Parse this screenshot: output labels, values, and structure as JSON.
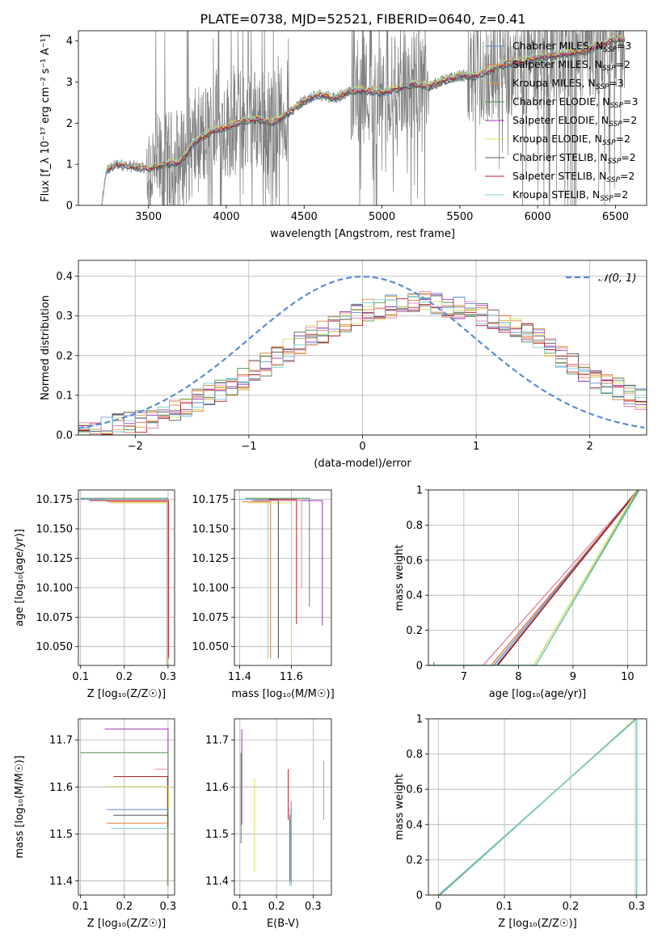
{
  "title": "PLATE=0738, MJD=52521, FIBERID=0640, z=0.41",
  "colors": {
    "Chabrier MILES": "#5b8bd6",
    "Salpeter MILES": "#e07a3a",
    "Kroupa MILES": "#e0a040",
    "Chabrier ELODIE": "#4f8f4f",
    "Salpeter ELODIE": "#9b30b0",
    "Kroupa ELODIE": "#d4e060",
    "Chabrier STELIB": "#555555",
    "Salpeter STELIB": "#b22222",
    "Kroupa STELIB": "#7fcfd8",
    "pink": "#e088b0",
    "normal": "#5b8bd6",
    "data": "#808080"
  },
  "chart_data": [
    {
      "id": "spectrum",
      "type": "line",
      "xlabel": "wavelength [Angstrom, rest frame]",
      "ylabel": "Flux [f_λ 10⁻¹⁷ erg cm⁻² s⁻¹ A⁻¹]",
      "xlim": [
        3050,
        6700
      ],
      "ylim": [
        0,
        4.25
      ],
      "xticks": [
        3500,
        4000,
        4500,
        5000,
        5500,
        6000,
        6500
      ],
      "yticks": [
        0,
        1,
        2,
        3,
        4
      ],
      "legend_position": "top-right",
      "legend": [
        {
          "label": "Chabrier MILES, N",
          "sub": "SSP",
          "suffix": "=3",
          "key": "Chabrier MILES"
        },
        {
          "label": "Salpeter MILES, N",
          "sub": "SSP",
          "suffix": "=2",
          "key": "Salpeter MILES"
        },
        {
          "label": "Kroupa MILES, N",
          "sub": "SSP",
          "suffix": "=3",
          "key": "Kroupa MILES"
        },
        {
          "label": "Chabrier ELODIE, N",
          "sub": "SSP",
          "suffix": "=3",
          "key": "Chabrier ELODIE"
        },
        {
          "label": "Salpeter ELODIE, N",
          "sub": "SSP",
          "suffix": "=2",
          "key": "Salpeter ELODIE"
        },
        {
          "label": "Kroupa ELODIE, N",
          "sub": "SSP",
          "suffix": "=2",
          "key": "Kroupa ELODIE"
        },
        {
          "label": "Chabrier STELIB, N",
          "sub": "SSP",
          "suffix": "=2",
          "key": "Chabrier STELIB"
        },
        {
          "label": "Salpeter STELIB, N",
          "sub": "SSP",
          "suffix": "=2",
          "key": "Salpeter STELIB"
        },
        {
          "label": "Kroupa STELIB, N",
          "sub": "SSP",
          "suffix": "=2",
          "key": "Kroupa STELIB"
        }
      ],
      "model_continuum": {
        "x": [
          3200,
          3230,
          3300,
          3400,
          3500,
          3600,
          3700,
          3800,
          3900,
          4000,
          4100,
          4200,
          4300,
          4400,
          4500,
          4600,
          4700,
          4800,
          4900,
          5000,
          5100,
          5200,
          5300,
          5400,
          5500,
          5600,
          5700,
          5800,
          5900,
          6000,
          6100,
          6200,
          6300,
          6400,
          6500
        ],
        "y": [
          0.0,
          0.85,
          1.0,
          0.95,
          0.9,
          1.0,
          1.05,
          1.55,
          1.8,
          1.9,
          2.05,
          2.1,
          2.0,
          2.25,
          2.55,
          2.7,
          2.6,
          2.8,
          2.8,
          2.75,
          2.85,
          2.95,
          2.9,
          3.05,
          3.15,
          3.15,
          3.3,
          3.45,
          3.5,
          3.6,
          3.65,
          3.7,
          3.75,
          3.9,
          4.05
        ]
      }
    },
    {
      "id": "residuals",
      "type": "step",
      "xlabel": "(data-model)/error",
      "ylabel": "Normed distribution",
      "xlim": [
        -2.5,
        2.5
      ],
      "ylim": [
        0,
        0.44
      ],
      "xticks": [
        -2,
        -1,
        0,
        1,
        2
      ],
      "yticks": [
        0.0,
        0.1,
        0.2,
        0.3,
        0.4
      ],
      "grid": true,
      "legend_position": "top-right",
      "legend": [
        {
          "label": "𝒩(0, 1)",
          "key": "normal",
          "style": "dashed"
        }
      ],
      "hist_shape": {
        "x": [
          -2.5,
          -2.0,
          -1.5,
          -1.0,
          -0.5,
          0.0,
          0.5,
          1.0,
          1.5,
          2.0,
          2.5
        ],
        "y": [
          0.01,
          0.03,
          0.08,
          0.15,
          0.24,
          0.31,
          0.34,
          0.31,
          0.25,
          0.15,
          0.08
        ]
      }
    },
    {
      "id": "age-vs-Z",
      "type": "step",
      "xlabel": "Z [log₁₀(Z/Z☉)]",
      "ylabel": "age  [log₁₀(age/yr)]",
      "xlim": [
        0.095,
        0.315
      ],
      "ylim": [
        10.034,
        10.183
      ],
      "xticks": [
        0.1,
        0.2,
        0.3
      ],
      "yticks": [
        10.05,
        10.075,
        10.1,
        10.125,
        10.15,
        10.175
      ],
      "ytick_labels": [
        "10.050",
        "10.075",
        "10.100",
        "10.125",
        "10.150",
        "10.175"
      ],
      "grid": true
    },
    {
      "id": "age-vs-mass",
      "type": "step",
      "xlabel": "mass [log₁₀(M/M☉)]",
      "xlim": [
        11.38,
        11.755
      ],
      "ylim": [
        10.034,
        10.183
      ],
      "xticks": [
        11.4,
        11.6
      ],
      "yticks": [
        10.05,
        10.075,
        10.1,
        10.125,
        10.15,
        10.175
      ],
      "ytick_labels": [
        "10.050",
        "10.075",
        "10.100",
        "10.125",
        "10.150",
        "10.175"
      ],
      "grid": true
    },
    {
      "id": "massweight-vs-age",
      "type": "line",
      "xlabel": "age  [log₁₀(age/yr)]",
      "ylabel": "mass weight",
      "xlim": [
        6.35,
        10.35
      ],
      "ylim": [
        0,
        1
      ],
      "xticks": [
        7,
        8,
        9,
        10
      ],
      "yticks": [
        0.0,
        0.2,
        0.4,
        0.6,
        0.8,
        1.0
      ],
      "grid": true
    },
    {
      "id": "mass-vs-Z",
      "type": "step",
      "xlabel": "Z [log₁₀(Z/Z☉)]",
      "ylabel": "mass [log₁₀(M/M☉)]",
      "xlim": [
        0.095,
        0.315
      ],
      "ylim": [
        11.37,
        11.745
      ],
      "xticks": [
        0.1,
        0.2,
        0.3
      ],
      "yticks": [
        11.4,
        11.5,
        11.6,
        11.7
      ],
      "grid": true
    },
    {
      "id": "mass-vs-EBV",
      "type": "step",
      "xlabel": "E(B-V)",
      "xlim": [
        0.085,
        0.35
      ],
      "ylim": [
        11.37,
        11.745
      ],
      "xticks": [
        0.1,
        0.2,
        0.3
      ],
      "yticks": [
        11.4,
        11.5,
        11.6,
        11.7
      ],
      "grid": true
    },
    {
      "id": "massweight-vs-Z",
      "type": "line",
      "xlabel": "Z [log₁₀(Z/Z☉)]",
      "ylabel": "mass weight",
      "xlim": [
        -0.015,
        0.315
      ],
      "ylim": [
        0,
        1
      ],
      "xticks": [
        0.0,
        0.1,
        0.2,
        0.3
      ],
      "yticks": [
        0.0,
        0.2,
        0.4,
        0.6,
        0.8,
        1.0
      ],
      "grid": true
    }
  ]
}
